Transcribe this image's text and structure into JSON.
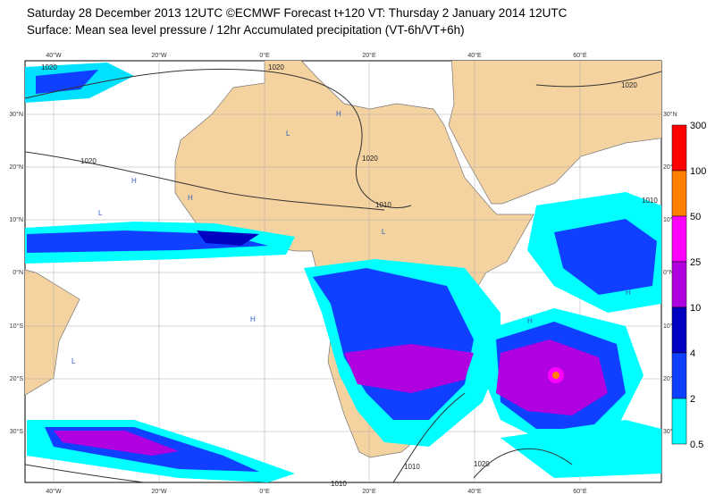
{
  "header": {
    "line1": "Saturday 28 December 2013 12UTC ©ECMWF Forecast t+120 VT: Thursday 2 January 2014 12UTC",
    "line2": "Surface: Mean sea level pressure / 12hr Accumulated precipitation (VT-6h/VT+6h)"
  },
  "map": {
    "lon_labels": [
      "40°W",
      "20°W",
      "0°E",
      "20°E",
      "40°E",
      "60°E"
    ],
    "lat_labels": [
      "30°N",
      "20°N",
      "10°N",
      "0°N",
      "10°S",
      "20°S",
      "30°S"
    ],
    "isobar_labels": [
      "1020",
      "1020",
      "1020",
      "1020",
      "1010",
      "1010",
      "1010",
      "1010",
      "1020",
      "1020"
    ],
    "pressure_centres": [
      "H",
      "H",
      "L",
      "L",
      "H",
      "L",
      "H",
      "H",
      "L",
      "H"
    ]
  },
  "colorbar": {
    "levels": [
      300,
      100,
      50,
      25,
      10,
      4,
      2,
      0.5
    ],
    "colors": [
      "#ff0000",
      "#ff8000",
      "#ff00ff",
      "#b000e0",
      "#0000c0",
      "#1040ff",
      "#00ffff"
    ]
  }
}
